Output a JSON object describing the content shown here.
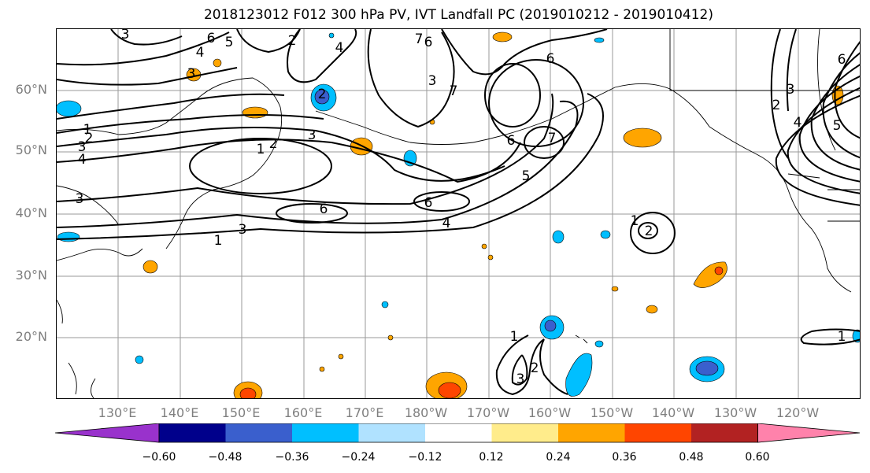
{
  "title": "2018123012 F012 300 hPa PV, IVT Landfall PC (2019010212 - 2019010412)",
  "lat_labels": [
    "60°N",
    "50°N",
    "40°N",
    "30°N",
    "20°N"
  ],
  "lon_labels": [
    "130°E",
    "140°E",
    "150°E",
    "160°E",
    "170°E",
    "180°W",
    "170°W",
    "160°W",
    "150°W",
    "140°W",
    "130°W",
    "120°W"
  ],
  "colorbar": {
    "ticks": [
      "−0.60",
      "−0.48",
      "−0.36",
      "−0.24",
      "−0.12",
      "0.12",
      "0.24",
      "0.36",
      "0.48",
      "0.60"
    ],
    "colors": [
      "#9932cc",
      "#00008b",
      "#3a5fcd",
      "#00bfff",
      "#b0e2ff",
      "#ffffff",
      "#ffec8b",
      "#ffa500",
      "#ff4500",
      "#b22222",
      "#ff82ab"
    ]
  },
  "contour_labels": [
    "3",
    "6",
    "5",
    "4",
    "2",
    "3",
    "4",
    "7",
    "6",
    "3",
    "7",
    "6",
    "1",
    "2",
    "3",
    "4",
    "1",
    "2",
    "3",
    "6",
    "6",
    "5",
    "6",
    "4",
    "1",
    "3",
    "7",
    "2",
    "1",
    "3",
    "2",
    "1",
    "2",
    "3",
    "4",
    "5",
    "6",
    "1",
    "3",
    "2"
  ]
}
